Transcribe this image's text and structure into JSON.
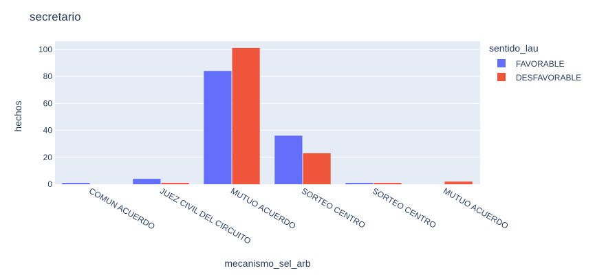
{
  "chart_data": {
    "type": "bar",
    "title": "secretario",
    "xlabel": "mecanismo_sel_arb",
    "ylabel": "hechos",
    "categories": [
      "COMUN ACUERDO",
      "JUEZ CIVIL DEL CIRCUITO",
      "MUTUO ACUERDO",
      "SORTEO CENTRO",
      "SORTEO CENTRO",
      "MUTUO ACUERDO"
    ],
    "series": [
      {
        "name": "FAVORABLE",
        "color": "#636efa",
        "values": [
          1,
          4,
          84,
          36,
          1,
          null
        ]
      },
      {
        "name": "DESFAVORABLE",
        "color": "#ef553b",
        "values": [
          null,
          1,
          101,
          23,
          1,
          2
        ]
      }
    ],
    "ylim": [
      0,
      106
    ],
    "yticks": [
      0,
      20,
      40,
      60,
      80,
      100
    ],
    "legend_title": "sentido_lau",
    "legend_position": "top-right",
    "grid": true,
    "plot_bgcolor": "#e5ecf6"
  }
}
